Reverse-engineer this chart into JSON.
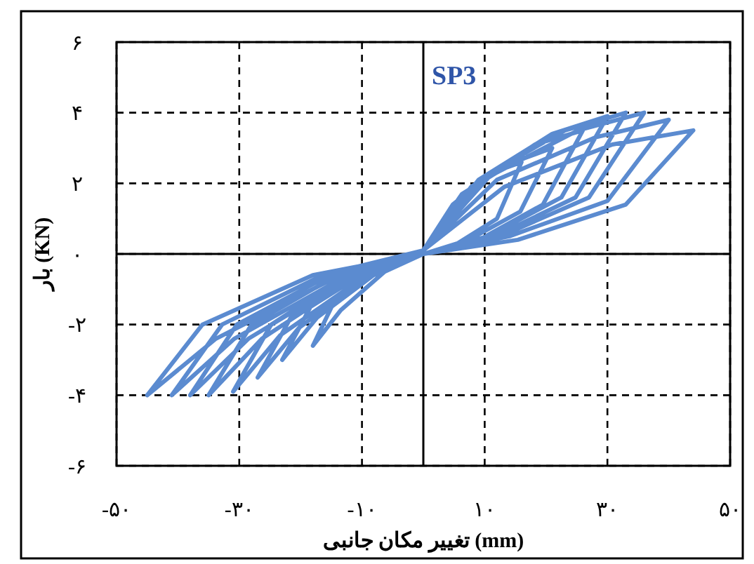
{
  "chart_data": {
    "type": "line",
    "title": "SP3",
    "xlabel": "تغییر مکان جانبی (mm)",
    "ylabel": "بار (KN)",
    "xlim": [
      -50,
      50
    ],
    "ylim": [
      -6,
      6
    ],
    "xticks": [
      {
        "value": -50,
        "label": "-۵۰"
      },
      {
        "value": -30,
        "label": "-۳۰"
      },
      {
        "value": -10,
        "label": "-۱۰"
      },
      {
        "value": 10,
        "label": "۱۰"
      },
      {
        "value": 30,
        "label": "۳۰"
      },
      {
        "value": 50,
        "label": "۵۰"
      }
    ],
    "yticks": [
      {
        "value": -6,
        "label": "-۶"
      },
      {
        "value": -4,
        "label": "-۴"
      },
      {
        "value": -2,
        "label": "-۲"
      },
      {
        "value": 0,
        "label": "۰"
      },
      {
        "value": 2,
        "label": "۲"
      },
      {
        "value": 4,
        "label": "۴"
      },
      {
        "value": 6,
        "label": "۶"
      }
    ],
    "grid": true,
    "marker": "none",
    "line_style": "solid",
    "ref_lines": [
      {
        "axis": "x",
        "value": 0,
        "color": "#000000",
        "line_style": "solid"
      }
    ],
    "series": [
      {
        "color": "#5b8bd0",
        "x": [
          0,
          4.8,
          11.2,
          16,
          12,
          5.6,
          0,
          -6.3,
          -13.5,
          -18,
          -14.4,
          -7.2,
          0,
          6.3,
          14.7,
          21,
          15.8,
          7.4,
          0,
          -8.1,
          -17.3,
          -23,
          -18.4,
          -9.2,
          0,
          7.8,
          18.2,
          26,
          19.5,
          9.1,
          0,
          -9.5,
          -20.3,
          -27,
          -21.6,
          -10.8,
          0,
          9,
          21,
          30,
          22.5,
          10.5,
          0,
          -10.9,
          -23.3,
          -31,
          -24.8,
          -12.4,
          0,
          9.9,
          23.1,
          33,
          24.8,
          11.6,
          0,
          -12.3,
          -26.3,
          -35,
          -28,
          -14,
          0,
          10.8,
          25.2,
          36,
          27,
          12.6,
          0,
          -13.3,
          -28.5,
          -38,
          -30.4,
          -15.2,
          0,
          12,
          28,
          40,
          30,
          14,
          0,
          -14.4,
          -30.8,
          -41,
          -32.8,
          -16.4,
          0,
          13.2,
          30.8,
          44,
          33,
          15.4,
          0,
          -15.8,
          -33.8,
          -45,
          -36,
          -18,
          0
        ],
        "values": [
          0.1,
          1.4,
          2.3,
          2.6,
          1.0,
          0.3,
          0,
          -0.5,
          -1.6,
          -2.6,
          -1.3,
          -0.4,
          0.1,
          1.7,
          2.6,
          3.0,
          1.2,
          0.4,
          0,
          -0.6,
          -1.8,
          -3.0,
          -1.5,
          -0.5,
          0.1,
          1.9,
          3.1,
          3.5,
          1.4,
          0.4,
          0,
          -0.7,
          -2.1,
          -3.5,
          -1.8,
          -0.5,
          0.1,
          2.1,
          3.4,
          3.9,
          1.6,
          0.5,
          0,
          -0.8,
          -2.3,
          -3.9,
          -2.0,
          -0.6,
          0.1,
          2.2,
          3.5,
          4.0,
          1.6,
          0.5,
          0,
          -0.8,
          -2.4,
          -4.0,
          -2.0,
          -0.6,
          0.1,
          2.2,
          3.5,
          4.0,
          1.6,
          0.5,
          0,
          -0.8,
          -2.4,
          -4.0,
          -2.0,
          -0.6,
          0.1,
          2.1,
          3.3,
          3.8,
          1.5,
          0.5,
          0,
          -0.8,
          -2.4,
          -4.0,
          -2.0,
          -0.6,
          0.1,
          1.9,
          3.1,
          3.5,
          1.4,
          0.4,
          0,
          -0.8,
          -2.4,
          -4.0,
          -2.0,
          -0.6,
          0
        ]
      }
    ]
  }
}
